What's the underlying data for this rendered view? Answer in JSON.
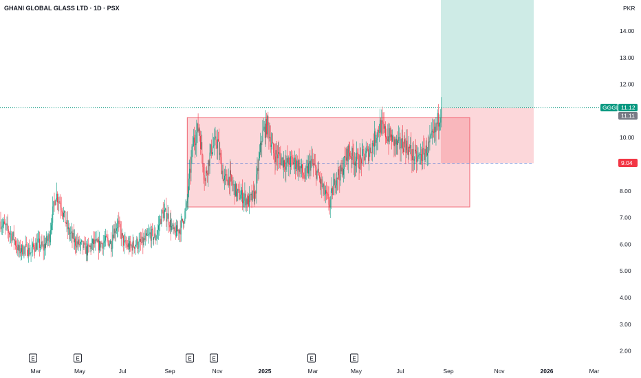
{
  "header": {
    "title": "GHANI GLOBAL GLASS LTD · 1D · PSX",
    "currency": "PKR"
  },
  "chart_data": {
    "type": "candlestick",
    "title": "GHANI GLOBAL GLASS LTD · 1D · PSX",
    "ylim": [
      1.7,
      15.25
    ],
    "y_ticks": [
      {
        "v": 14,
        "label": "14.00"
      },
      {
        "v": 13,
        "label": "13.00"
      },
      {
        "v": 12,
        "label": "12.00"
      },
      {
        "v": 10,
        "label": "10.00"
      },
      {
        "v": 8,
        "label": "8.00"
      },
      {
        "v": 7,
        "label": "7.00"
      },
      {
        "v": 6,
        "label": "6.00"
      },
      {
        "v": 5,
        "label": "5.00"
      },
      {
        "v": 4,
        "label": "4.00"
      },
      {
        "v": 3,
        "label": "3.00"
      },
      {
        "v": 2,
        "label": "2.00"
      }
    ],
    "x_ticks": [
      {
        "label": "Mar",
        "bold": false
      },
      {
        "label": "May",
        "bold": false
      },
      {
        "label": "Jul",
        "bold": false
      },
      {
        "label": "Sep",
        "bold": false
      },
      {
        "label": "Nov",
        "bold": false
      },
      {
        "label": "2025",
        "bold": true
      },
      {
        "label": "Mar",
        "bold": false
      },
      {
        "label": "May",
        "bold": false
      },
      {
        "label": "Jul",
        "bold": false
      },
      {
        "label": "Sep",
        "bold": false
      },
      {
        "label": "Nov",
        "bold": false
      },
      {
        "label": "2026",
        "bold": true
      },
      {
        "label": "Mar",
        "bold": false
      }
    ],
    "event_marker": "E",
    "event_count": 6,
    "price_path": [
      [
        6.85,
        6.6
      ],
      [
        6.6,
        6.3
      ],
      [
        6.35,
        5.75
      ],
      [
        5.75,
        5.85
      ],
      [
        5.85,
        5.7
      ],
      [
        5.8,
        6.0
      ],
      [
        6.05,
        5.85
      ],
      [
        5.9,
        6.3
      ],
      [
        6.5,
        7.9
      ],
      [
        7.9,
        7.4
      ],
      [
        7.3,
        6.5
      ],
      [
        6.5,
        6.1
      ],
      [
        6.1,
        5.95
      ],
      [
        6.0,
        5.75
      ],
      [
        5.75,
        6.05
      ],
      [
        6.05,
        5.95
      ],
      [
        6.0,
        6.1
      ],
      [
        6.15,
        6.05
      ],
      [
        6.35,
        6.8
      ],
      [
        6.7,
        6.0
      ],
      [
        6.0,
        5.9
      ],
      [
        5.9,
        6.05
      ],
      [
        6.0,
        6.05
      ],
      [
        6.1,
        6.3
      ],
      [
        6.4,
        6.25
      ],
      [
        6.2,
        7.1
      ],
      [
        7.2,
        7.05
      ],
      [
        7.0,
        6.4
      ],
      [
        6.4,
        6.6
      ],
      [
        6.6,
        7.35
      ],
      [
        7.4,
        9.7
      ],
      [
        9.8,
        10.4
      ],
      [
        10.4,
        8.35
      ],
      [
        8.5,
        9.6
      ],
      [
        9.6,
        9.85
      ],
      [
        9.8,
        8.4
      ],
      [
        8.4,
        8.5
      ],
      [
        8.4,
        7.95
      ],
      [
        7.9,
        7.8
      ],
      [
        7.8,
        7.6
      ],
      [
        7.6,
        7.85
      ],
      [
        7.9,
        9.8
      ],
      [
        10.0,
        10.5
      ],
      [
        10.5,
        9.4
      ],
      [
        9.4,
        9.3
      ],
      [
        9.2,
        9.05
      ],
      [
        9.0,
        9.1
      ],
      [
        9.1,
        9.0
      ],
      [
        9.0,
        8.5
      ],
      [
        8.5,
        9.1
      ],
      [
        9.05,
        8.7
      ],
      [
        8.7,
        8.0
      ],
      [
        8.0,
        7.5
      ],
      [
        7.5,
        8.5
      ],
      [
        8.6,
        8.7
      ],
      [
        8.8,
        9.5
      ],
      [
        9.5,
        9.2
      ],
      [
        9.2,
        9.1
      ],
      [
        9.2,
        9.4
      ],
      [
        9.3,
        9.8
      ],
      [
        9.8,
        10.4
      ],
      [
        10.5,
        10.15
      ],
      [
        10.1,
        10.0
      ],
      [
        9.9,
        9.7
      ],
      [
        9.7,
        9.8
      ],
      [
        9.8,
        9.5
      ],
      [
        9.4,
        9.2
      ],
      [
        9.2,
        9.35
      ],
      [
        9.3,
        9.7
      ],
      [
        9.7,
        10.2
      ],
      [
        10.3,
        11.12
      ]
    ],
    "last_price": 11.12,
    "symbol": "GGGL",
    "labels": {
      "symbol_tag": "GGGL",
      "last_tag": "11.12",
      "prev_tag": "11.11",
      "stop_tag": "9.04"
    },
    "range_box": {
      "from_idx": 30,
      "to_idx": 52,
      "top": 10.75,
      "bottom": 7.4,
      "mid": 9.04
    },
    "position": {
      "entry": 11.12,
      "target": 15.25,
      "stop": 9.04
    },
    "colors": {
      "up": "#089981",
      "down": "#f23645",
      "box_fill": "rgba(242, 54, 69, 0.2)",
      "box_stroke": "#f06371",
      "target_fill": "rgba(8, 153, 129, 0.2)",
      "stop_fill": "rgba(242, 54, 69, 0.2)",
      "tag_green": "#089981",
      "tag_grey": "#787b86",
      "tag_red": "#f23645"
    }
  }
}
